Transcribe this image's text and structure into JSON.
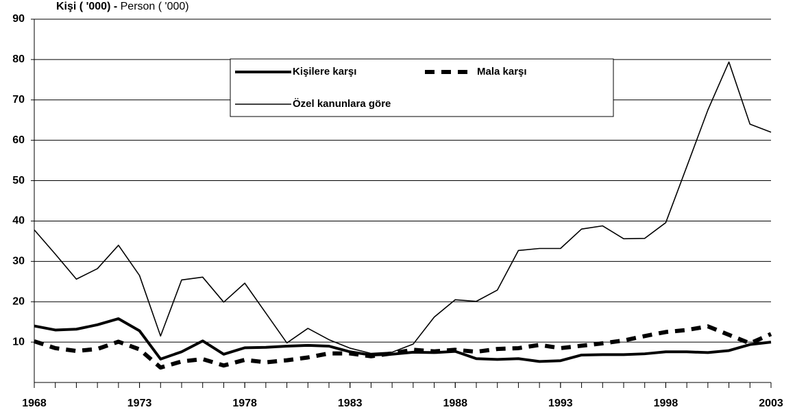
{
  "chart_data": {
    "type": "line",
    "ylabel": [
      "Kişi ( '000) -",
      "Person ( '000)"
    ],
    "x": [
      1968,
      1969,
      1970,
      1971,
      1972,
      1973,
      1974,
      1975,
      1976,
      1977,
      1978,
      1979,
      1980,
      1981,
      1982,
      1983,
      1984,
      1985,
      1986,
      1987,
      1988,
      1989,
      1990,
      1991,
      1992,
      1993,
      1994,
      1995,
      1996,
      1997,
      1998,
      1999,
      2000,
      2001,
      2002,
      2003
    ],
    "xlim": [
      1968,
      2003
    ],
    "xticks": [
      1968,
      1973,
      1978,
      1983,
      1988,
      1993,
      1998,
      2003
    ],
    "ylim": [
      0,
      90
    ],
    "yticks": [
      10,
      20,
      30,
      40,
      50,
      60,
      70,
      80,
      90
    ],
    "grid": true,
    "series": [
      {
        "name": "Kişilere karşı",
        "color": "#000000",
        "style": "thick",
        "values": [
          14,
          13,
          13.2,
          14.3,
          15.8,
          12.8,
          5.8,
          7.6,
          10.3,
          7,
          8.6,
          8.7,
          9,
          9.2,
          9,
          7.6,
          6.8,
          7,
          7.5,
          7.4,
          7.7,
          5.9,
          5.7,
          5.9,
          5.2,
          5.4,
          6.8,
          6.9,
          6.9,
          7.1,
          7.6,
          7.6,
          7.4,
          7.9,
          9.4,
          10
        ]
      },
      {
        "name": "Mala karşı",
        "color": "#000000",
        "style": "dashed",
        "values": [
          10.2,
          8.5,
          7.8,
          8.3,
          10.1,
          8.2,
          3.7,
          5.2,
          5.8,
          4.2,
          5.6,
          5,
          5.5,
          6.2,
          7.2,
          7.2,
          6.5,
          7.2,
          8.1,
          7.7,
          8.1,
          7.6,
          8.3,
          8.5,
          9.3,
          8.5,
          9.1,
          9.7,
          10.4,
          11.5,
          12.5,
          13,
          13.9,
          11.8,
          9.7,
          12
        ]
      },
      {
        "name": "Özel kanunlara göre",
        "color": "#000000",
        "style": "thin",
        "values": [
          37.8,
          31.8,
          25.6,
          28.2,
          34,
          26.5,
          11.5,
          25.4,
          26.1,
          19.9,
          24.6,
          17.2,
          9.8,
          13.4,
          10.6,
          8.5,
          7.2,
          7.5,
          9.5,
          16.2,
          20.5,
          20.1,
          22.9,
          32.7,
          33.2,
          33.2,
          38,
          38.8,
          35.6,
          35.7,
          39.6,
          53.5,
          67.5,
          79.4,
          64,
          62
        ]
      }
    ]
  }
}
